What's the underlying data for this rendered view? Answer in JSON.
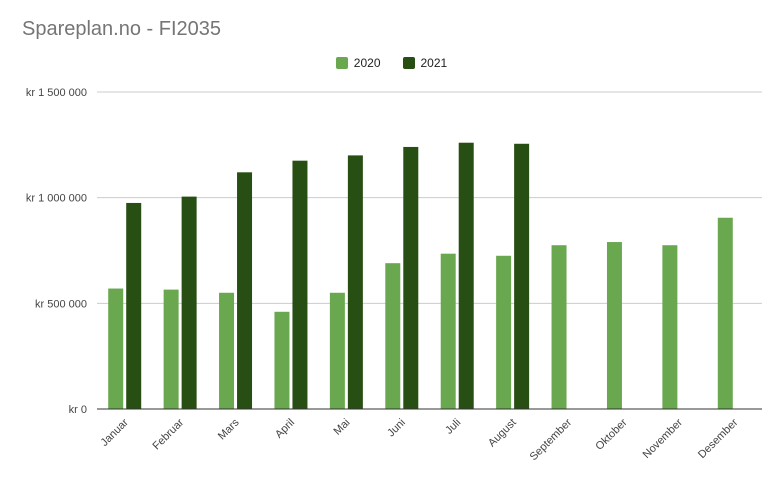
{
  "title": "Spareplan.no - FI2035",
  "colors": {
    "2020": "#6aa84f",
    "2021": "#274e13",
    "grid": "#cccccc",
    "axis": "#333333"
  },
  "chart_data": {
    "type": "bar",
    "title": "Spareplan.no - FI2035",
    "xlabel": "",
    "ylabel": "",
    "legend_placement": "top",
    "grid": true,
    "categories": [
      "Januar",
      "Februar",
      "Mars",
      "April",
      "Mai",
      "Juni",
      "Juli",
      "August",
      "September",
      "Oktober",
      "November",
      "Desember"
    ],
    "series": [
      {
        "name": "2020",
        "values": [
          570000,
          565000,
          550000,
          460000,
          550000,
          690000,
          735000,
          725000,
          775000,
          790000,
          775000,
          905000
        ]
      },
      {
        "name": "2021",
        "values": [
          975000,
          1005000,
          1120000,
          1175000,
          1200000,
          1240000,
          1260000,
          1255000,
          null,
          null,
          null,
          null
        ]
      }
    ],
    "ylim": [
      0,
      1500000
    ],
    "yticks": [
      0,
      500000,
      1000000,
      1500000
    ],
    "ytick_labels": [
      "kr   0",
      "kr  500 000",
      "kr 1 000 000",
      "kr 1 500 000"
    ]
  }
}
